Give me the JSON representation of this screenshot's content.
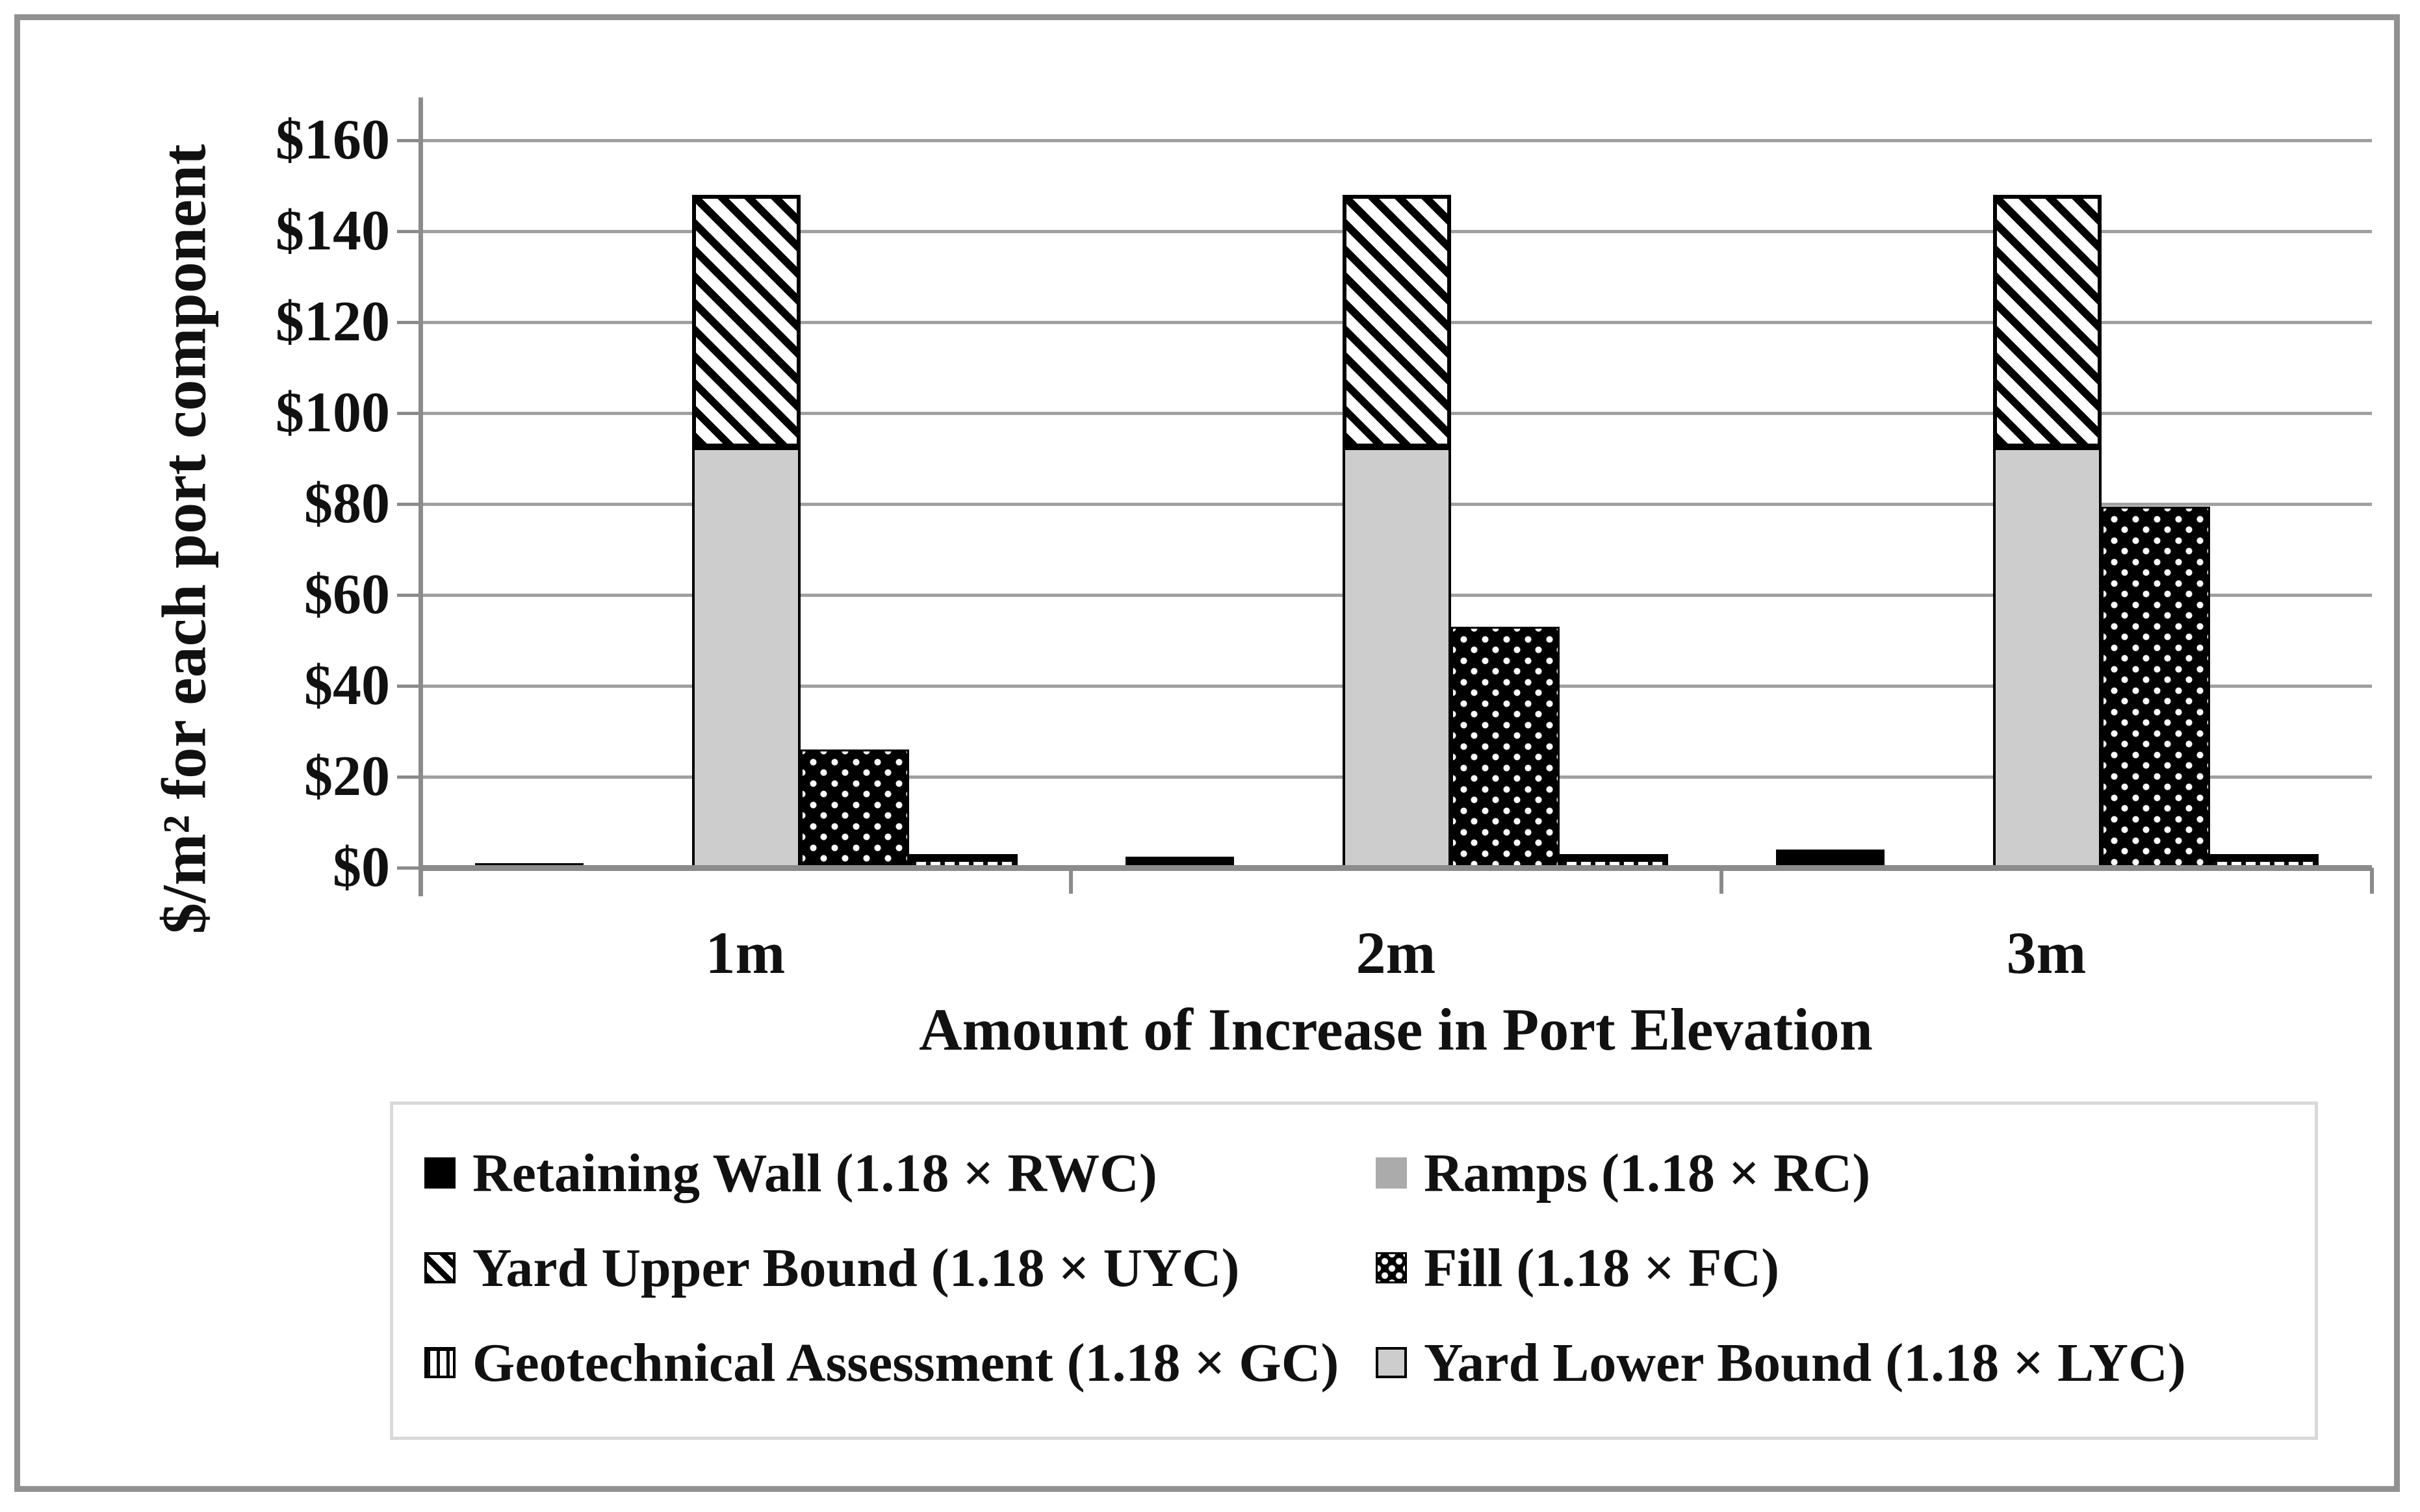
{
  "figure": {
    "y_axis_title": "$/m² for each port component",
    "x_axis_title": "Amount of Increase in Port Elevation"
  },
  "legend": {
    "items": [
      {
        "key": "retaining-wall",
        "label": "Retaining Wall (1.18 × RWC)",
        "swatch": "solid-black"
      },
      {
        "key": "ramps",
        "label": "Ramps (1.18 × RC)",
        "swatch": "solid-gray"
      },
      {
        "key": "yard-upper-bound",
        "label": "Yard Upper Bound (1.18 × UYC)",
        "swatch": "diagonal-hatch"
      },
      {
        "key": "fill",
        "label": "Fill (1.18 × FC)",
        "swatch": "dots"
      },
      {
        "key": "geotechnical-assessment",
        "label": "Geotechnical Assessment (1.18 × GC)",
        "swatch": "vertical-stripes"
      },
      {
        "key": "yard-lower-bound",
        "label": "Yard Lower Bound (1.18 × LYC)",
        "swatch": "solid-light-gray"
      }
    ]
  },
  "chart_data": {
    "type": "bar",
    "title": "",
    "xlabel": "Amount of Increase in Port Elevation",
    "ylabel": "$/m² for each port component",
    "categories": [
      "1m",
      "2m",
      "3m"
    ],
    "ylim": [
      0,
      160
    ],
    "ytick_step": 20,
    "ytick_labels": [
      "$0",
      "$20",
      "$40",
      "$60",
      "$80",
      "$100",
      "$120",
      "$140",
      "$160"
    ],
    "grid": true,
    "legend_position": "bottom",
    "units": "$ per square meter",
    "series": [
      {
        "key": "retaining-wall",
        "name": "Retaining Wall (1.18 × RWC)",
        "pattern": "solid-black",
        "slot": 0,
        "values": [
          1,
          2.5,
          4
        ]
      },
      {
        "key": "ramps",
        "name": "Ramps (1.18 × RC)",
        "pattern": "solid-gray",
        "slot": 1,
        "values": [
          0,
          0,
          0
        ]
      },
      {
        "key": "yard-upper-bound",
        "name": "Yard Upper Bound (1.18 × UYC)",
        "pattern": "diagonal-hatch",
        "slot": 2,
        "values": [
          148,
          148,
          148
        ],
        "base_values": [
          92.5,
          92.5,
          92.5
        ],
        "note": "hatched segment drawn from yard lower bound up to yard upper bound"
      },
      {
        "key": "fill",
        "name": "Fill (1.18 × FC)",
        "pattern": "dots",
        "slot": 3,
        "values": [
          26,
          53,
          79.5
        ]
      },
      {
        "key": "geotechnical-assessment",
        "name": "Geotechnical Assessment (1.18 × GC)",
        "pattern": "vertical-stripes",
        "slot": 4,
        "values": [
          3,
          3,
          3
        ]
      },
      {
        "key": "yard-lower-bound",
        "name": "Yard Lower Bound (1.18 × LYC)",
        "pattern": "solid-light-gray",
        "slot": 2,
        "values": [
          92.5,
          92.5,
          92.5
        ]
      }
    ]
  }
}
